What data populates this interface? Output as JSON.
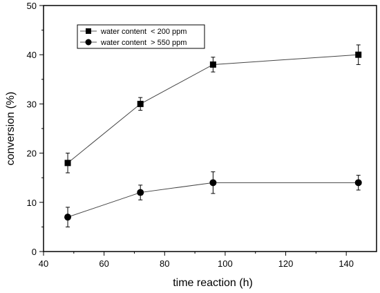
{
  "chart_data": {
    "type": "line",
    "xlabel": "time reaction (h)",
    "ylabel": "conversion (%)",
    "xlim": [
      40,
      150
    ],
    "ylim": [
      0,
      50
    ],
    "x_ticks": [
      40,
      60,
      80,
      100,
      120,
      140
    ],
    "y_ticks": [
      0,
      10,
      20,
      30,
      40,
      50
    ],
    "grid": false,
    "legend_position": "top-left",
    "series": [
      {
        "name": "water content  < 200 ppm",
        "marker": "square",
        "color": "#000000",
        "x": [
          48,
          72,
          96,
          144
        ],
        "y": [
          18,
          30,
          38,
          40
        ],
        "error": [
          2,
          1.3,
          1.5,
          2
        ]
      },
      {
        "name": "water content  > 550 ppm",
        "marker": "circle",
        "color": "#000000",
        "x": [
          48,
          72,
          96,
          144
        ],
        "y": [
          7,
          12,
          14,
          14
        ],
        "error": [
          2,
          1.5,
          2.2,
          1.5
        ]
      }
    ]
  }
}
